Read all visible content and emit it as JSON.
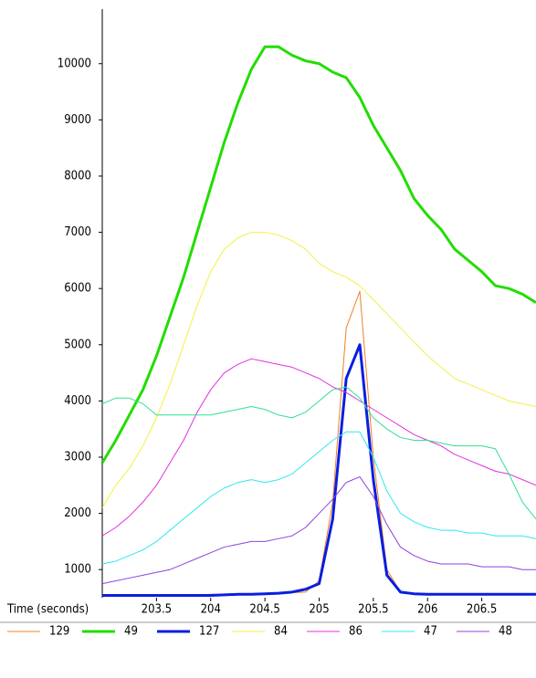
{
  "chart_data": {
    "type": "line",
    "x_label": "Time (seconds)",
    "x": [
      203,
      203.125,
      203.25,
      203.375,
      203.5,
      203.625,
      203.75,
      203.875,
      204,
      204.125,
      204.25,
      204.375,
      204.5,
      204.625,
      204.75,
      204.875,
      205,
      205.125,
      205.25,
      205.375,
      205.5,
      205.625,
      205.75,
      205.875,
      206,
      206.125,
      206.25,
      206.375,
      206.5,
      206.625,
      206.75,
      206.875,
      207
    ],
    "xlim": [
      203,
      207
    ],
    "xticks": [
      203.5,
      204,
      204.5,
      205,
      205.5,
      206,
      206.5
    ],
    "ylim": [
      500,
      10970
    ],
    "yticks": [
      1000,
      2000,
      3000,
      4000,
      5000,
      6000,
      7000,
      8000,
      9000,
      10000
    ],
    "series": [
      {
        "name": "129",
        "color": "#f08020",
        "line_width": 1,
        "values": [
          550,
          550,
          550,
          550,
          550,
          550,
          550,
          550,
          560,
          560,
          570,
          570,
          580,
          580,
          590,
          600,
          800,
          2200,
          5300,
          5950,
          3000,
          1000,
          600,
          570,
          560,
          560,
          560,
          560,
          560,
          560,
          560,
          560,
          560
        ]
      },
      {
        "name": "49",
        "color": "#22dd00",
        "line_width": 3,
        "values": [
          2900,
          3300,
          3750,
          4200,
          4800,
          5500,
          6200,
          7000,
          7800,
          8600,
          9300,
          9900,
          10300,
          10300,
          10150,
          10050,
          10000,
          9850,
          9750,
          9400,
          8900,
          8500,
          8100,
          7600,
          7300,
          7050,
          6700,
          6500,
          6300,
          6050,
          6000,
          5900,
          5750
        ]
      },
      {
        "name": "127",
        "color": "#0a1ee0",
        "line_width": 3,
        "values": [
          540,
          540,
          540,
          540,
          540,
          540,
          540,
          540,
          540,
          550,
          560,
          560,
          570,
          580,
          600,
          650,
          750,
          1900,
          4400,
          5000,
          2600,
          900,
          600,
          570,
          560,
          560,
          560,
          560,
          560,
          560,
          560,
          560,
          560
        ]
      },
      {
        "name": "84",
        "color": "#f4f040",
        "line_width": 1,
        "values": [
          2100,
          2500,
          2800,
          3200,
          3700,
          4300,
          5000,
          5700,
          6300,
          6700,
          6900,
          7000,
          7000,
          6950,
          6850,
          6700,
          6450,
          6300,
          6200,
          6050,
          5800,
          5550,
          5300,
          5050,
          4800,
          4600,
          4400,
          4300,
          4200,
          4100,
          4000,
          3950,
          3900
        ]
      },
      {
        "name": "86",
        "color": "#e030e0",
        "line_width": 1,
        "values": [
          1600,
          1750,
          1950,
          2200,
          2500,
          2900,
          3300,
          3800,
          4200,
          4500,
          4650,
          4750,
          4700,
          4650,
          4600,
          4500,
          4400,
          4250,
          4150,
          4000,
          3850,
          3700,
          3550,
          3400,
          3300,
          3200,
          3050,
          2950,
          2850,
          2750,
          2700,
          2600,
          2500
        ]
      },
      {
        "name": "47",
        "color": "#30e8f0",
        "line_width": 1,
        "values": [
          1100,
          1150,
          1250,
          1350,
          1500,
          1700,
          1900,
          2100,
          2300,
          2450,
          2550,
          2600,
          2550,
          2600,
          2700,
          2900,
          3100,
          3300,
          3450,
          3450,
          3000,
          2400,
          2000,
          1850,
          1750,
          1700,
          1700,
          1650,
          1650,
          1600,
          1600,
          1600,
          1550
        ]
      },
      {
        "name": "48",
        "color": "#9040e0",
        "line_width": 1,
        "values": [
          750,
          800,
          850,
          900,
          950,
          1000,
          1100,
          1200,
          1300,
          1400,
          1450,
          1500,
          1500,
          1550,
          1600,
          1750,
          2000,
          2250,
          2550,
          2650,
          2300,
          1800,
          1400,
          1250,
          1150,
          1100,
          1100,
          1100,
          1050,
          1050,
          1050,
          1000,
          1000
        ]
      },
      {
        "color": "#30e090",
        "line_width": 1,
        "values": [
          3950,
          4050,
          4050,
          3950,
          3750,
          3750,
          3750,
          3750,
          3750,
          3800,
          3850,
          3900,
          3850,
          3750,
          3700,
          3800,
          4000,
          4200,
          4250,
          4050,
          3700,
          3500,
          3350,
          3300,
          3300,
          3250,
          3200,
          3200,
          3200,
          3150,
          2700,
          2200,
          1900
        ]
      }
    ]
  }
}
